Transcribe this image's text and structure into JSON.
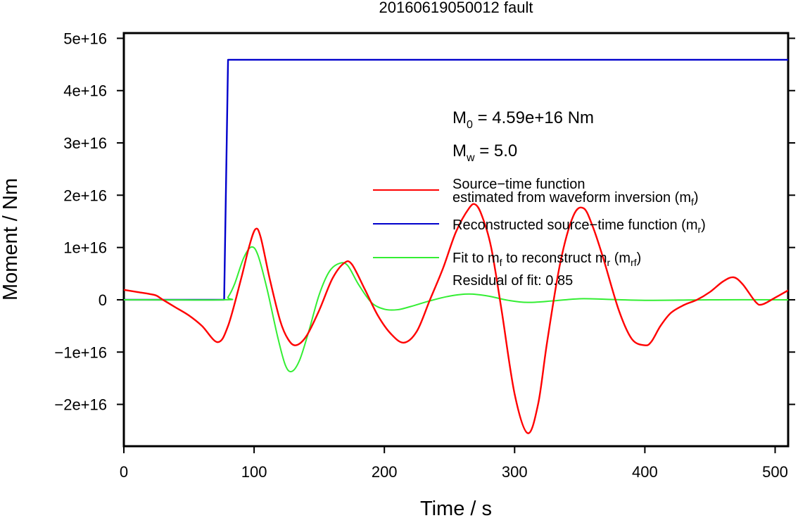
{
  "chart_data": {
    "type": "line",
    "title": "20160619050012 fault",
    "xlabel": "Time / s",
    "ylabel": "Moment / Nm",
    "xlim": [
      0,
      510
    ],
    "ylim": [
      -2.8e+16,
      5.1e+16
    ],
    "xticks": [
      0,
      100,
      200,
      300,
      400,
      500
    ],
    "xtick_labels": [
      "0",
      "100",
      "200",
      "300",
      "400",
      "500"
    ],
    "yticks": [
      -2e+16,
      -1e+16,
      0,
      1e+16,
      2e+16,
      3e+16,
      4e+16,
      5e+16
    ],
    "ytick_labels": [
      "−2e+16",
      "−1e+16",
      "0",
      "1e+16",
      "2e+16",
      "3e+16",
      "4e+16",
      "5e+16"
    ],
    "grid": false,
    "legend_position": "right",
    "annotations": {
      "m0_label": "M",
      "m0_sub": "0",
      "m0_value": " = 4.59e+16 Nm",
      "mw_label": "M",
      "mw_sub": "w",
      "mw_value": " = 5.0",
      "residual": "Residual of fit: 0.85"
    },
    "series": [
      {
        "key": "mf",
        "color": "#ff0000",
        "legend_line1": "Source−time function",
        "legend_line2": "estimated from waveform inversion (m",
        "legend_sub": "f",
        "legend_tail": ")",
        "x": [
          0,
          10,
          20,
          25,
          30,
          40,
          50,
          60,
          72,
          80,
          90,
          96,
          101,
          105,
          112,
          120,
          126,
          132,
          140,
          150,
          160,
          169,
          175,
          185,
          195,
          205,
          215,
          225,
          235,
          245,
          255,
          265,
          270,
          275,
          282,
          290,
          300,
          310,
          318,
          325,
          335,
          345,
          353,
          360,
          368,
          380,
          390,
          400,
          405,
          412,
          420,
          430,
          440,
          450,
          460,
          468,
          475,
          485,
          490,
          500,
          510
        ],
        "y": [
          1900000000000000.0,
          1500000000000000.0,
          1100000000000000.0,
          800000000000000.0,
          0,
          -1500000000000000.0,
          -3000000000000000.0,
          -5000000000000000.0,
          -8100000000000000.0,
          -5000000000000000.0,
          4000000000000000.0,
          1e+16,
          1.35e+16,
          1.2e+16,
          4000000000000000.0,
          -4000000000000000.0,
          -7500000000000000.0,
          -8700000000000000.0,
          -7000000000000000.0,
          -2000000000000000.0,
          4000000000000000.0,
          7000000000000000.0,
          6800000000000000.0,
          2000000000000000.0,
          -3000000000000000.0,
          -6500000000000000.0,
          -8200000000000000.0,
          -6000000000000000.0,
          0,
          6000000000000000.0,
          1.3e+16,
          1.75e+16,
          1.82e+16,
          1.6e+16,
          1e+16,
          -2000000000000000.0,
          -1.8e+16,
          -2.55e+16,
          -2e+16,
          -8000000000000000.0,
          7000000000000000.0,
          1.6e+16,
          1.75e+16,
          1.4e+16,
          8000000000000000.0,
          -2000000000000000.0,
          -7500000000000000.0,
          -8700000000000000.0,
          -8000000000000000.0,
          -5000000000000000.0,
          -2500000000000000.0,
          -1000000000000000.0,
          0,
          1500000000000000.0,
          3500000000000000.0,
          4300000000000000.0,
          3000000000000000.0,
          -400000000000000.0,
          -900000000000000.0,
          400000000000000.0,
          1800000000000000.0
        ]
      },
      {
        "key": "mr",
        "color": "#0000cc",
        "legend_line1": "Reconstructed source−time function (m",
        "legend_sub": "r",
        "legend_tail": ")",
        "x": [
          0,
          77,
          80,
          510
        ],
        "y": [
          0,
          0,
          4.59e+16,
          4.59e+16
        ]
      },
      {
        "key": "mrf",
        "color": "#33ee33",
        "legend_line1": "Fit to m",
        "legend_sub1": "f",
        "legend_mid": " to reconstruct m",
        "legend_sub2": "r",
        "legend_paren": " (m",
        "legend_sub3": "rf",
        "legend_tail": ")",
        "x": [
          0,
          77,
          80,
          85,
          92,
          98,
          103,
          110,
          118,
          124,
          129,
          135,
          142,
          150,
          158,
          166,
          172,
          180,
          190,
          200,
          210,
          220,
          235,
          250,
          265,
          280,
          295,
          310,
          330,
          350,
          370,
          400,
          450,
          510
        ],
        "y": [
          0,
          0,
          500000000000000.0,
          3000000000000000.0,
          8000000000000000.0,
          1.01e+16,
          8500000000000000.0,
          2000000000000000.0,
          -7000000000000000.0,
          -1.25e+16,
          -1.37e+16,
          -1.15e+16,
          -6000000000000000.0,
          1000000000000000.0,
          5500000000000000.0,
          7000000000000000.0,
          6500000000000000.0,
          3000000000000000.0,
          -500000000000000.0,
          -1800000000000000.0,
          -1900000000000000.0,
          -1300000000000000.0,
          -200000000000000.0,
          700000000000000.0,
          1100000000000000.0,
          700000000000000.0,
          -100000000000000.0,
          -500000000000000.0,
          -200000000000000.0,
          200000000000000.0,
          100000000000000.0,
          -100000000000000.0,
          0,
          0
        ]
      }
    ]
  }
}
